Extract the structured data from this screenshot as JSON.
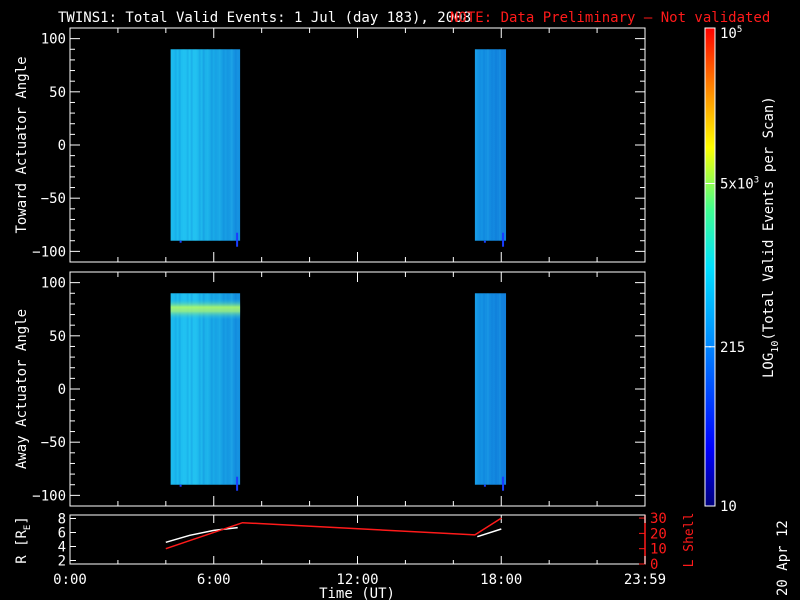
{
  "title": {
    "main": "TWINS1: Total Valid Events:  1 Jul (day 183), 2008",
    "note": "NOTE: Data Preliminary – Not validated"
  },
  "date_stamp": "20 Apr 12",
  "colors": {
    "background": "#000000",
    "axes": "#ffffff",
    "note": "#ff1a1a",
    "lshell_trace": "#ff1a1a",
    "radius_trace": "#ffffff"
  },
  "chart_data": [
    {
      "type": "heatmap",
      "ylabel": "Toward Actuator Angle",
      "yticks": [
        "100",
        "50",
        "0",
        "−50",
        "−100"
      ],
      "ytick_values": [
        100,
        50,
        0,
        -50,
        -100
      ],
      "ylim": [
        -110,
        110
      ],
      "xlim": [
        0,
        24
      ],
      "data_blocks": [
        {
          "t_start": 4.2,
          "t_end": 7.1,
          "angle_min": -90,
          "angle_max": 90,
          "log_value": 2.9
        },
        {
          "t_start": 16.9,
          "t_end": 18.2,
          "angle_min": -90,
          "angle_max": 90,
          "log_value": 2.6
        }
      ]
    },
    {
      "type": "heatmap",
      "ylabel": "Away Actuator Angle",
      "yticks": [
        "100",
        "50",
        "0",
        "−50",
        "−100"
      ],
      "ytick_values": [
        100,
        50,
        0,
        -50,
        -100
      ],
      "ylim": [
        -110,
        110
      ],
      "xlim": [
        0,
        24
      ],
      "data_blocks": [
        {
          "t_start": 4.2,
          "t_end": 7.1,
          "angle_min": -90,
          "angle_max": 90,
          "log_value": 2.9,
          "enhanced_band": {
            "angle_min": 65,
            "angle_max": 85,
            "log_value": 3.3
          }
        },
        {
          "t_start": 16.9,
          "t_end": 18.2,
          "angle_min": -90,
          "angle_max": 90,
          "log_value": 2.6
        }
      ]
    },
    {
      "type": "line",
      "xlabel": "Time (UT)",
      "xticks": [
        "0:00",
        "6:00",
        "12:00",
        "18:00",
        "23:59"
      ],
      "xtick_values": [
        0,
        6,
        12,
        18,
        24
      ],
      "xlim": [
        0,
        24
      ],
      "left_axis": {
        "label": "R [R",
        "label_sub": "E",
        "label_end": "]",
        "ticks": [
          "8",
          "6",
          "4",
          "2"
        ],
        "tick_values": [
          8,
          6,
          4,
          2
        ],
        "ylim": [
          1.5,
          8.5
        ]
      },
      "right_axis": {
        "label": "L Shell",
        "ticks": [
          "30",
          "20",
          "10",
          "0"
        ],
        "tick_values": [
          30,
          20,
          10,
          0
        ],
        "ylim": [
          0,
          32
        ]
      },
      "series": [
        {
          "axis": "left",
          "color": "#ffffff",
          "segments": [
            [
              {
                "x": 4.0,
                "y": 4.6
              },
              {
                "x": 5.0,
                "y": 5.6
              },
              {
                "x": 6.0,
                "y": 6.3
              },
              {
                "x": 7.0,
                "y": 6.7
              }
            ],
            [
              {
                "x": 17.0,
                "y": 5.4
              },
              {
                "x": 18.0,
                "y": 6.5
              }
            ]
          ]
        },
        {
          "axis": "right",
          "color": "#ff1a1a",
          "segments": [
            [
              {
                "x": 4.0,
                "y": 10
              },
              {
                "x": 7.2,
                "y": 27
              },
              {
                "x": 16.9,
                "y": 19
              },
              {
                "x": 18.0,
                "y": 30
              }
            ]
          ]
        }
      ]
    }
  ],
  "colorbar": {
    "label": "LOG",
    "label_sub": "10",
    "label_rest": "(Total Valid Events per Scan)",
    "ticks": [
      {
        "text": "10",
        "sup": "5",
        "value": 100000
      },
      {
        "text": "5x10",
        "sup": "3",
        "value": 5000
      },
      {
        "text": "215",
        "sup": "",
        "value": 215
      },
      {
        "text": "10",
        "sup": "",
        "value": 10
      }
    ],
    "range": [
      10,
      100000
    ]
  }
}
